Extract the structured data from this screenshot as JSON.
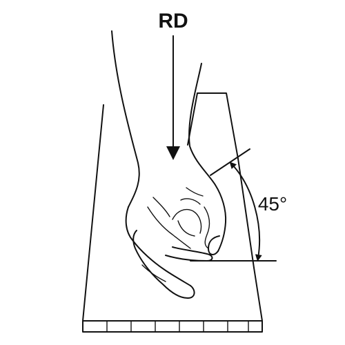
{
  "labels": {
    "direction": "RD",
    "angle": "45°"
  },
  "colors": {
    "ink": "#111111",
    "background": "#ffffff"
  },
  "icons": {
    "direction_arrow": "arrow-down",
    "angle_arc": "double-headed-arc-arrow"
  },
  "measurements": {
    "angle_degrees": 45
  }
}
